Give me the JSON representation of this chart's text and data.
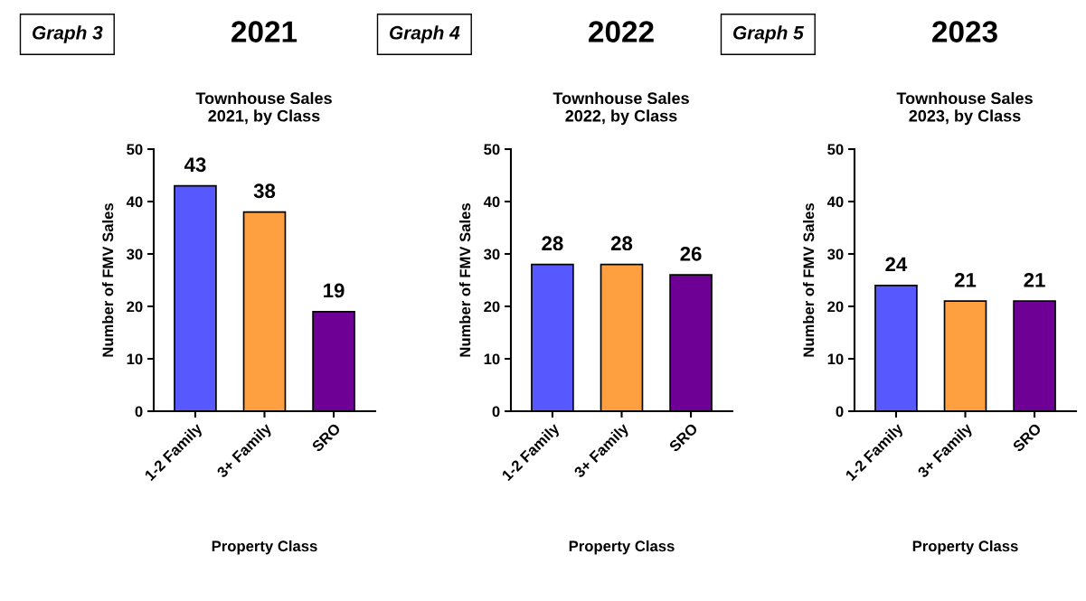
{
  "chart_data": [
    {
      "type": "bar",
      "title": "2021",
      "subtitle": "Townhouse Sales\n2021, by Class",
      "annotations": [
        "Graph 3"
      ],
      "xlabel": "Property Class",
      "ylabel": "Number of FMV Sales",
      "categories": [
        "1-2 Family",
        "3+ Family",
        "SRO"
      ],
      "values": [
        43,
        38,
        19
      ],
      "colors": [
        "#5858ff",
        "#ffa040",
        "#6e0096"
      ],
      "ylim": [
        0,
        50
      ],
      "yticks": [
        0,
        10,
        20,
        30,
        40,
        50
      ],
      "data_labels": true,
      "grid": false,
      "legend": false
    },
    {
      "type": "bar",
      "title": "2022",
      "subtitle": "Townhouse Sales\n2022, by Class",
      "annotations": [
        "Graph 4"
      ],
      "xlabel": "Property Class",
      "ylabel": "Number of FMV Sales",
      "categories": [
        "1-2 Family",
        "3+ Family",
        "SRO"
      ],
      "values": [
        28,
        28,
        26
      ],
      "colors": [
        "#5858ff",
        "#ffa040",
        "#6e0096"
      ],
      "ylim": [
        0,
        50
      ],
      "yticks": [
        0,
        10,
        20,
        30,
        40,
        50
      ],
      "data_labels": true,
      "grid": false,
      "legend": false
    },
    {
      "type": "bar",
      "title": "2023",
      "subtitle": "Townhouse Sales\n2023, by Class",
      "annotations": [
        "Graph 5"
      ],
      "xlabel": "Property Class",
      "ylabel": "Number of FMV Sales",
      "categories": [
        "1-2 Family",
        "3+ Family",
        "SRO"
      ],
      "values": [
        24,
        21,
        21
      ],
      "colors": [
        "#5858ff",
        "#ffa040",
        "#6e0096"
      ],
      "ylim": [
        0,
        50
      ],
      "yticks": [
        0,
        10,
        20,
        30,
        40,
        50
      ],
      "data_labels": true,
      "grid": false,
      "legend": false
    }
  ]
}
